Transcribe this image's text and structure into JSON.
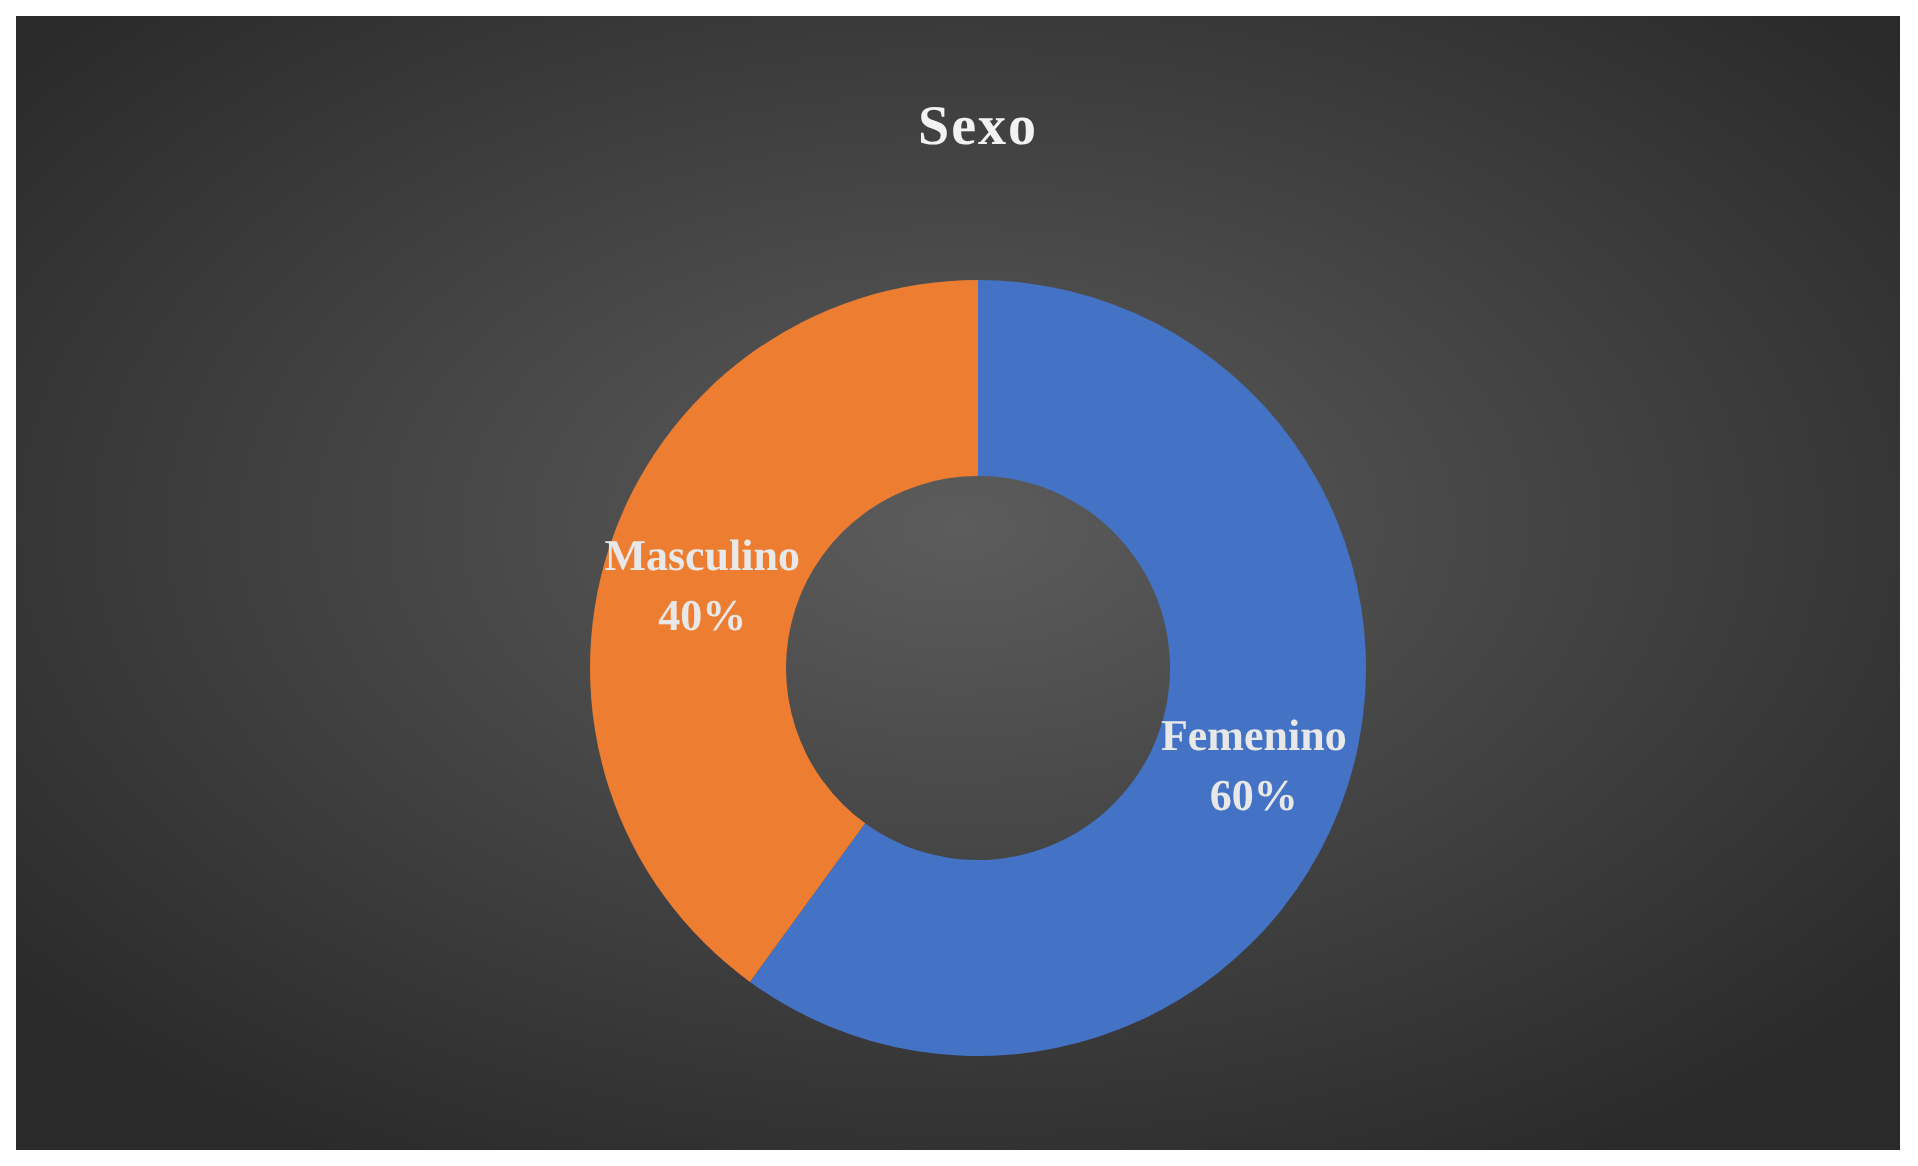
{
  "chart_data": {
    "type": "donut",
    "title": "Sexo",
    "categories": [
      "Femenino",
      "Masculino"
    ],
    "values": [
      60,
      40
    ],
    "colors": [
      "#4472c4",
      "#ed7d31"
    ],
    "value_labels": [
      "60%",
      "40%"
    ],
    "legend": false
  }
}
